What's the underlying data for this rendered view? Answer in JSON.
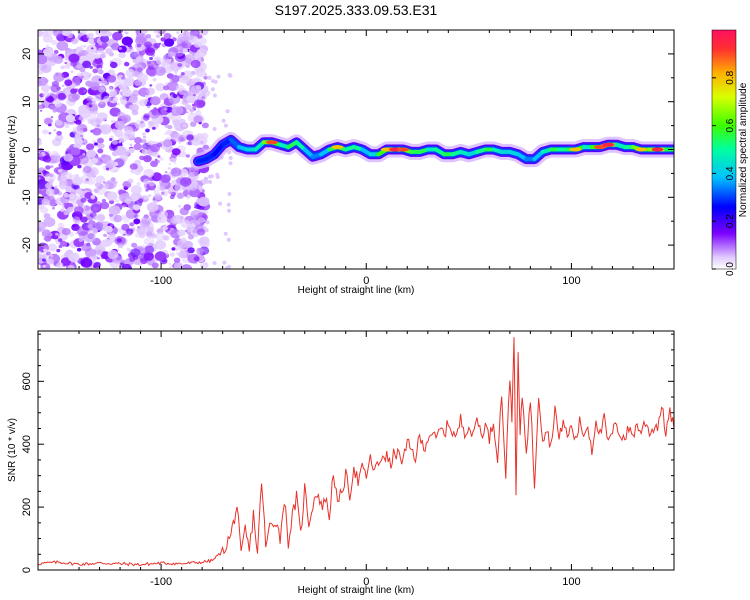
{
  "title": "S197.2025.333.09.53.E31",
  "chart_data": [
    {
      "type": "heatmap",
      "name": "spectrogram",
      "xlabel": "Height of straight line (km)",
      "ylabel": "Frequency (Hz)",
      "xlim": [
        -160,
        150
      ],
      "ylim": [
        -25,
        25
      ],
      "xticks": [
        -100,
        0,
        100
      ],
      "yticks": [
        -20,
        -10,
        0,
        10,
        20
      ],
      "colorbar": {
        "label": "Normalized spectral amplitude",
        "range": [
          0,
          1
        ],
        "ticks": [
          0.0,
          0.2,
          0.4,
          0.6,
          0.8
        ]
      },
      "noise_region_x": [
        -160,
        -78
      ],
      "signal_ridge": {
        "x": [
          -82,
          -78,
          -74,
          -70,
          -66,
          -62,
          -58,
          -54,
          -50,
          -46,
          -42,
          -38,
          -34,
          -30,
          -26,
          -22,
          -18,
          -14,
          -10,
          -6,
          -2,
          2,
          6,
          10,
          14,
          18,
          22,
          26,
          30,
          34,
          38,
          42,
          46,
          50,
          54,
          58,
          62,
          66,
          70,
          74,
          78,
          82,
          86,
          90,
          94,
          98,
          102,
          106,
          110,
          114,
          118,
          122,
          126,
          130,
          134,
          138,
          142,
          146,
          150
        ],
        "freq": [
          -2.5,
          -2,
          -1,
          1,
          2,
          0.5,
          0,
          0,
          1.5,
          1.5,
          1,
          0.5,
          1.5,
          0,
          -1.5,
          -1,
          0,
          0.5,
          0,
          0.5,
          0,
          -1,
          -1,
          0,
          0,
          0,
          -0.5,
          -0.5,
          0,
          0,
          -1,
          -1,
          -0.5,
          -1,
          -0.5,
          0,
          0,
          -0.5,
          -0.5,
          -1,
          -2,
          -2,
          -0.5,
          0,
          0,
          0,
          0,
          0.5,
          0.5,
          0.5,
          1,
          1,
          0.5,
          0.5,
          0,
          0,
          0,
          0,
          0
        ],
        "amplitude": [
          0.3,
          0.35,
          0.3,
          0.3,
          0.35,
          0.4,
          0.5,
          0.5,
          0.6,
          0.9,
          0.5,
          0.6,
          0.7,
          0.5,
          0.4,
          0.4,
          0.5,
          0.8,
          0.5,
          0.7,
          0.5,
          0.4,
          0.6,
          0.8,
          0.95,
          0.9,
          0.6,
          0.7,
          0.6,
          0.5,
          0.7,
          0.6,
          0.6,
          0.5,
          0.5,
          0.7,
          0.6,
          0.5,
          0.5,
          0.5,
          0.4,
          0.4,
          0.5,
          0.6,
          0.7,
          0.5,
          0.8,
          0.6,
          0.5,
          0.9,
          0.95,
          0.6,
          0.5,
          0.7,
          0.8,
          0.6,
          0.95,
          0.7,
          0.6
        ]
      }
    },
    {
      "type": "line",
      "name": "snr",
      "xlabel": "Height of straight line (km)",
      "ylabel": "SNR (10 * v/v)",
      "xlim": [
        -160,
        150
      ],
      "ylim": [
        0,
        760
      ],
      "xticks": [
        -100,
        0,
        100
      ],
      "yticks": [
        0,
        200,
        400,
        600
      ],
      "series": [
        {
          "name": "SNR",
          "color": "#e8322a",
          "x": [
            -160,
            -150,
            -140,
            -130,
            -120,
            -110,
            -100,
            -90,
            -80,
            -75,
            -70,
            -66,
            -63,
            -61,
            -59,
            -57,
            -55,
            -53,
            -51,
            -49,
            -47,
            -44,
            -42,
            -40,
            -38,
            -36,
            -34,
            -32,
            -30,
            -28,
            -26,
            -24,
            -22,
            -20,
            -18,
            -16,
            -14,
            -12,
            -10,
            -8,
            -6,
            -4,
            -2,
            0,
            2,
            4,
            6,
            8,
            10,
            12,
            14,
            16,
            18,
            20,
            22,
            24,
            26,
            28,
            30,
            32,
            34,
            36,
            38,
            40,
            42,
            44,
            46,
            48,
            50,
            52,
            54,
            56,
            58,
            60,
            62,
            64,
            66,
            68,
            70,
            71,
            72,
            73,
            74,
            75,
            76,
            78,
            80,
            82,
            84,
            86,
            88,
            90,
            92,
            94,
            96,
            98,
            100,
            102,
            104,
            106,
            108,
            110,
            112,
            114,
            116,
            118,
            120,
            122,
            124,
            126,
            128,
            130,
            132,
            134,
            136,
            138,
            140,
            142,
            144,
            146,
            148,
            150
          ],
          "values": [
            20,
            25,
            18,
            22,
            20,
            17,
            22,
            20,
            25,
            30,
            60,
            110,
            205,
            40,
            130,
            60,
            180,
            50,
            290,
            70,
            140,
            160,
            100,
            230,
            90,
            170,
            230,
            110,
            260,
            150,
            210,
            250,
            200,
            230,
            170,
            320,
            200,
            250,
            300,
            240,
            330,
            280,
            320,
            300,
            350,
            320,
            330,
            370,
            360,
            330,
            380,
            360,
            350,
            400,
            380,
            360,
            420,
            390,
            420,
            440,
            410,
            450,
            430,
            470,
            440,
            420,
            480,
            440,
            460,
            420,
            490,
            430,
            460,
            420,
            470,
            360,
            560,
            300,
            620,
            470,
            760,
            230,
            690,
            420,
            560,
            380,
            540,
            270,
            560,
            420,
            450,
            390,
            520,
            410,
            480,
            420,
            460,
            410,
            470,
            430,
            460,
            380,
            480,
            430,
            480,
            400,
            440,
            460,
            430,
            420,
            450,
            430,
            460,
            440,
            470,
            440,
            450,
            460,
            520,
            440,
            500,
            450
          ]
        }
      ]
    }
  ]
}
